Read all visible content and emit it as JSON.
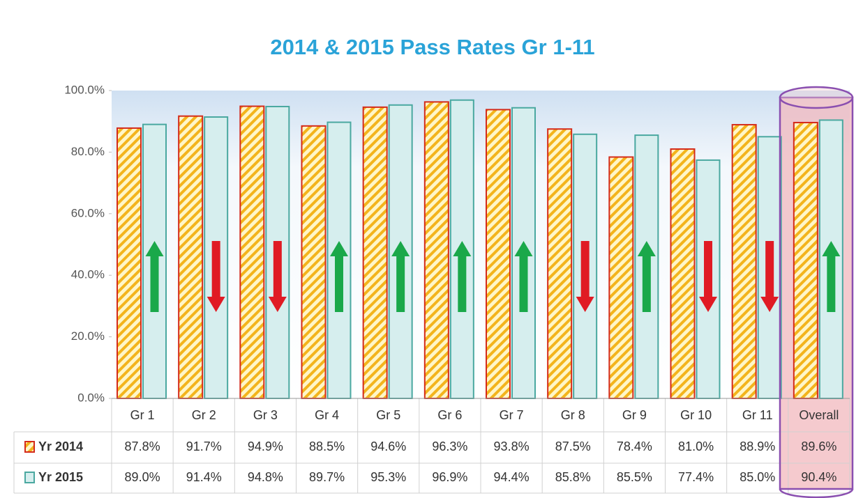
{
  "chart_data": {
    "type": "bar",
    "title": "2014 & 2015 Pass Rates Gr 1-11",
    "categories": [
      "Gr 1",
      "Gr 2",
      "Gr 3",
      "Gr 4",
      "Gr 5",
      "Gr 6",
      "Gr 7",
      "Gr 8",
      "Gr 9",
      "Gr 10",
      "Gr 11",
      "Overall"
    ],
    "series": [
      {
        "name": "Yr 2014",
        "color": "#f5c518",
        "values": [
          87.8,
          91.7,
          94.9,
          88.5,
          94.6,
          96.3,
          93.8,
          87.5,
          78.4,
          81.0,
          88.9,
          89.6
        ],
        "value_labels": [
          "87.8%",
          "91.7%",
          "94.9%",
          "88.5%",
          "94.6%",
          "96.3%",
          "93.8%",
          "87.5%",
          "78.4%",
          "81.0%",
          "88.9%",
          "89.6%"
        ]
      },
      {
        "name": "Yr 2015",
        "color": "#d6eeee",
        "values": [
          89.0,
          91.4,
          94.8,
          89.7,
          95.3,
          96.9,
          94.4,
          85.8,
          85.5,
          77.4,
          85.0,
          90.4
        ],
        "value_labels": [
          "89.0%",
          "91.4%",
          "94.8%",
          "89.7%",
          "95.3%",
          "96.9%",
          "94.4%",
          "85.8%",
          "85.5%",
          "77.4%",
          "85.0%",
          "90.4%"
        ]
      }
    ],
    "ylim": [
      0,
      100
    ],
    "yticks": [
      {
        "value": 0,
        "label": "0.0%"
      },
      {
        "value": 20,
        "label": "20.0%"
      },
      {
        "value": 40,
        "label": "40.0%"
      },
      {
        "value": 60,
        "label": "60.0%"
      },
      {
        "value": 80,
        "label": "80.0%"
      },
      {
        "value": 100,
        "label": "100.0%"
      }
    ]
  }
}
